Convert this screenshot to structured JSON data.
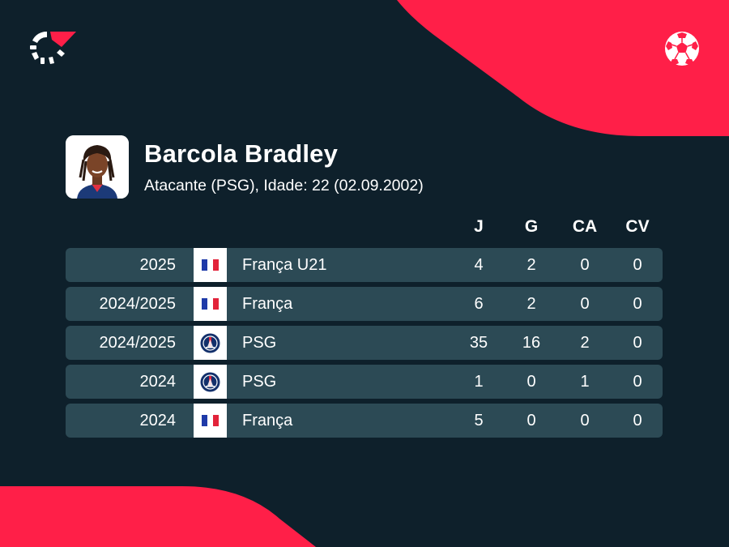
{
  "player": {
    "name": "Barcola Bradley",
    "subtitle": "Atacante (PSG), Idade: 22 (02.09.2002)"
  },
  "columns": [
    "J",
    "G",
    "CA",
    "CV"
  ],
  "rows": [
    {
      "season": "2025",
      "team": "França U21",
      "flag": "france-flag-icon",
      "J": "4",
      "G": "2",
      "CA": "0",
      "CV": "0"
    },
    {
      "season": "2024/2025",
      "team": "França",
      "flag": "france-flag-icon",
      "J": "6",
      "G": "2",
      "CA": "0",
      "CV": "0"
    },
    {
      "season": "2024/2025",
      "team": "PSG",
      "flag": "psg-crest-icon",
      "J": "35",
      "G": "16",
      "CA": "2",
      "CV": "0"
    },
    {
      "season": "2024",
      "team": "PSG",
      "flag": "psg-crest-icon",
      "J": "1",
      "G": "0",
      "CA": "1",
      "CV": "0"
    },
    {
      "season": "2024",
      "team": "França",
      "flag": "france-flag-icon",
      "J": "5",
      "G": "0",
      "CA": "0",
      "CV": "0"
    }
  ],
  "colors": {
    "background": "#0e202b",
    "accent": "#ff1f48",
    "row": "#2c4a55"
  },
  "icons": {
    "brand": "flashscore-logo-icon",
    "sport": "football-icon"
  }
}
